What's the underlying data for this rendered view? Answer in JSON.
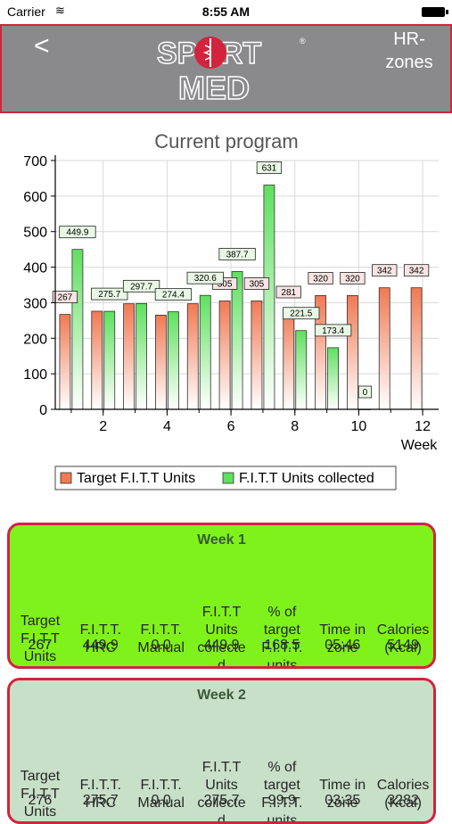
{
  "status": {
    "carrier": "Carrier",
    "time": "8:55 AM"
  },
  "nav": {
    "back": "<",
    "right": "HR-zones",
    "logo_top": "SPORT",
    "logo_bottom": "MED"
  },
  "colors": {
    "accent": "#d2243c",
    "navbar": "#8a8a8c",
    "card1": "#7ff21b",
    "card2": "#c8dfc8"
  },
  "chart_data": {
    "type": "bar",
    "title": "Current program",
    "xlabel": "Week",
    "ylabel": "",
    "ylim": [
      0,
      700
    ],
    "yticks": [
      0,
      100,
      200,
      300,
      400,
      500,
      600,
      700
    ],
    "xticks": [
      2,
      4,
      6,
      8,
      10,
      12
    ],
    "categories": [
      1,
      2,
      3,
      4,
      5,
      6,
      7,
      8,
      9,
      10,
      11,
      12
    ],
    "series": [
      {
        "name": "Target F.I.T.T Units",
        "values": [
          267,
          276,
          297,
          265,
          297,
          305,
          305,
          281,
          320,
          320,
          342,
          342
        ],
        "labels": [
          "267",
          "",
          "",
          "",
          "",
          "305",
          "305",
          "281",
          "320",
          "320",
          "342",
          "342"
        ]
      },
      {
        "name": "F.I.T.T Units collected",
        "values": [
          449.9,
          275.7,
          297.7,
          274.4,
          320.6,
          387.7,
          631,
          221.5,
          173.4,
          0,
          null,
          null
        ],
        "labels": [
          "449.9",
          "275.7",
          "297.7",
          "274.4",
          "320.6",
          "387.7",
          "631",
          "221.5",
          "173.4",
          "0",
          "",
          ""
        ]
      }
    ],
    "legend": "bottom",
    "grid": true
  },
  "headers": [
    "Target F.I.T.T Units",
    "F.I.T.T. HRC",
    "F.I.T.T. Manual",
    "F.I.T.T Units collected",
    "% of target F.I.T.T. units",
    "Time in zone",
    "Calories (Kcal)"
  ],
  "header_lines": [
    [
      "Target",
      "F.I.T.T",
      "Units"
    ],
    [
      "F.I.T.T.",
      "HRC"
    ],
    [
      "F.I.T.T.",
      "Manual"
    ],
    [
      "F.I.T.T",
      "Units",
      "collecte",
      "d"
    ],
    [
      "% of",
      "target",
      "F.I.T.T.",
      "units"
    ],
    [
      "Time in",
      "zone"
    ],
    [
      "Calories",
      "(Kcal)"
    ]
  ],
  "weeks": [
    {
      "title": "Week 1",
      "values": [
        "267",
        "449.9",
        "0.0",
        "449.9",
        "168.5",
        "05:46",
        "5149"
      ]
    },
    {
      "title": "Week 2",
      "values": [
        "276",
        "275.7",
        "0.0",
        "275.7",
        "99.9",
        "03:35",
        "3282"
      ]
    }
  ]
}
